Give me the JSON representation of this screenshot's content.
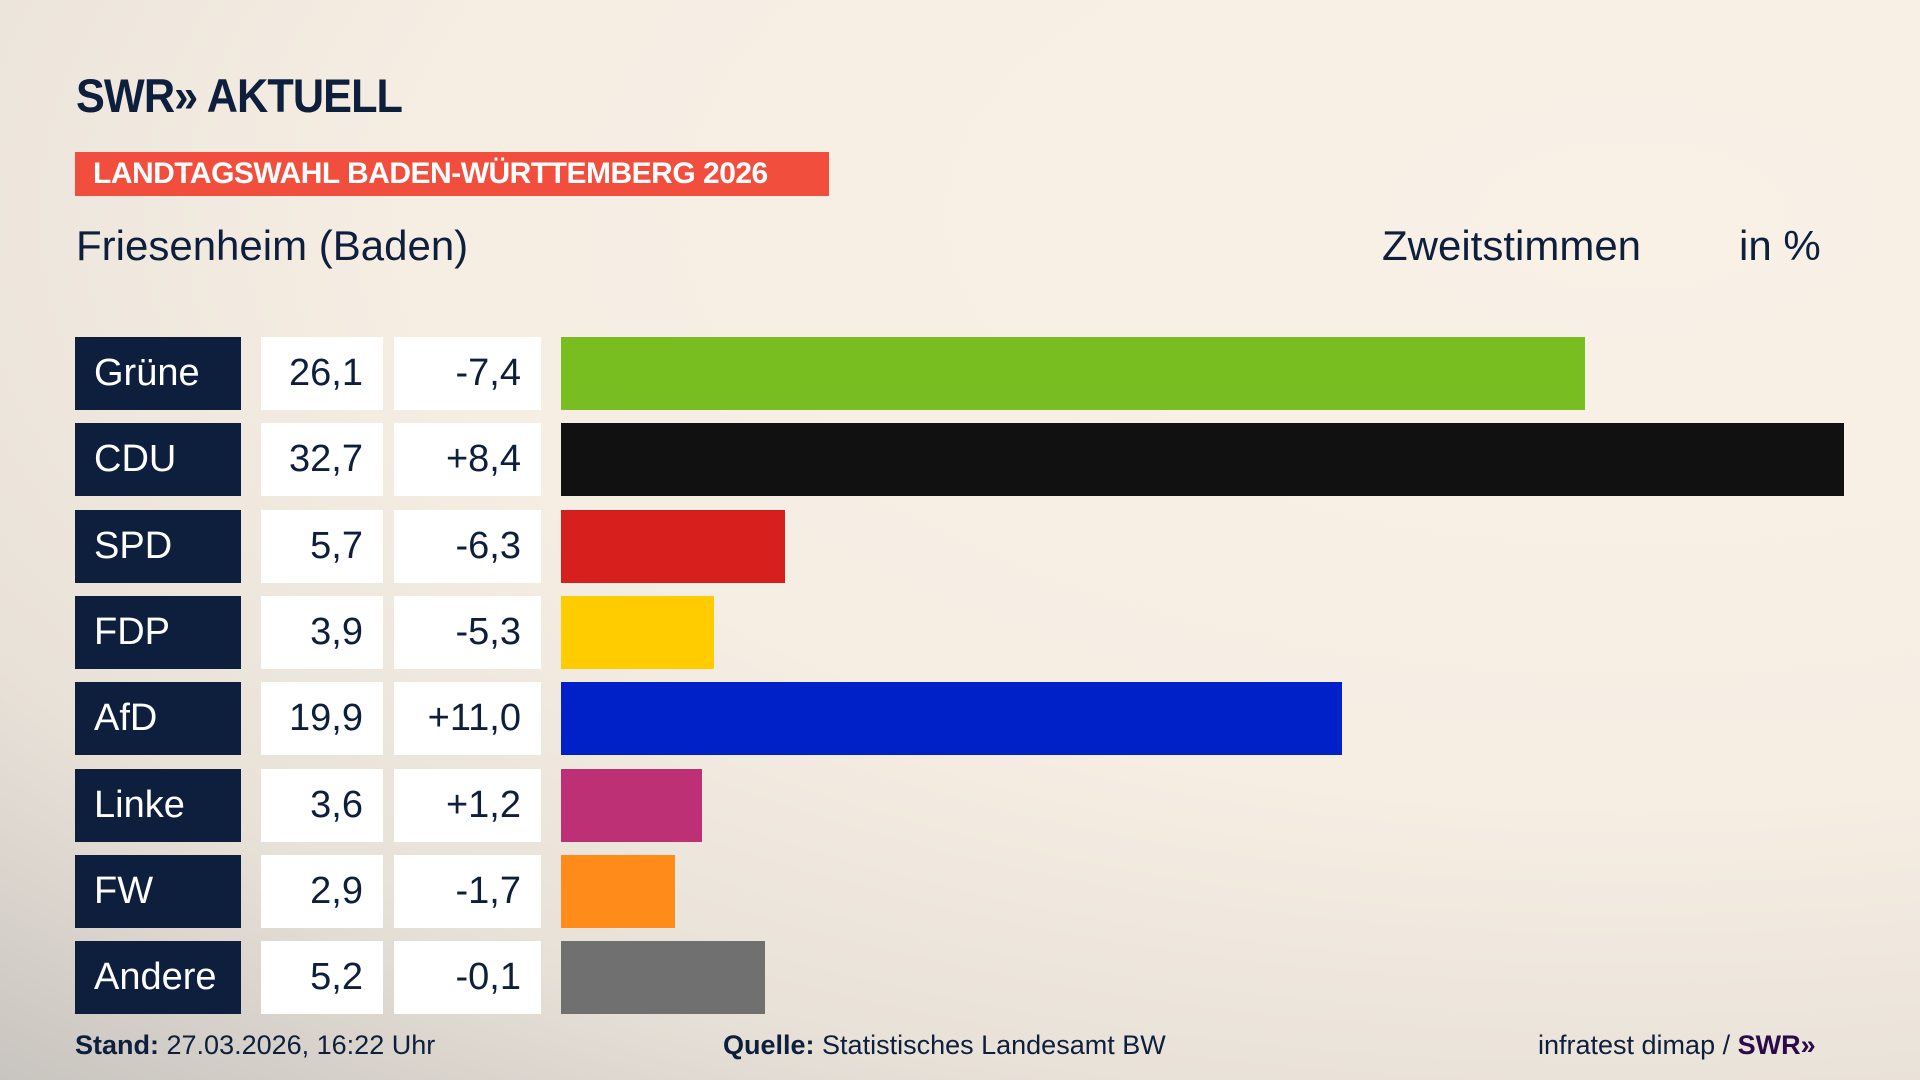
{
  "header": {
    "logo": "SWR» AKTUELL",
    "banner": "LANDTAGSWAHL BADEN-WÜRTTEMBERG 2026",
    "location": "Friesenheim (Baden)",
    "vote_type": "Zweitstimmen",
    "unit": "in %"
  },
  "chart_data": {
    "type": "bar",
    "orientation": "horizontal",
    "title": "Friesenheim (Baden)",
    "categories": [
      "Grüne",
      "CDU",
      "SPD",
      "FDP",
      "AfD",
      "Linke",
      "FW",
      "Andere"
    ],
    "series": [
      {
        "name": "Zweitstimmen",
        "values": [
          26.1,
          32.7,
          5.7,
          3.9,
          19.9,
          3.6,
          2.9,
          5.2
        ]
      }
    ],
    "value_labels": [
      "26,1",
      "32,7",
      "5,7",
      "3,9",
      "19,9",
      "3,6",
      "2,9",
      "5,2"
    ],
    "change_labels": [
      "-7,4",
      "+8,4",
      "-6,3",
      "-5,3",
      "+11,0",
      "+1,2",
      "-1,7",
      "-0,1"
    ],
    "changes": [
      -7.4,
      8.4,
      -6.3,
      -5.3,
      11.0,
      1.2,
      -1.7,
      -0.1
    ],
    "colors": [
      "#78be20",
      "#111111",
      "#d71f1d",
      "#ffcc00",
      "#0021c8",
      "#bd3075",
      "#ff8c1a",
      "#707070"
    ],
    "xlim": [
      0,
      32.7
    ],
    "grid": false,
    "legend": "none"
  },
  "footer": {
    "stand_label": "Stand:",
    "stand_value": "27.03.2026, 16:22 Uhr",
    "source_label": "Quelle:",
    "source_value": "Statistisches Landesamt BW",
    "credit": "infratest dimap / ",
    "credit_logo": "SWR»"
  }
}
